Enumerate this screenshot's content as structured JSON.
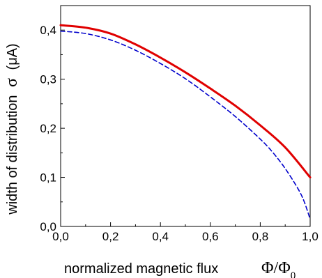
{
  "chart_data": {
    "type": "line",
    "xlabel": "normalized magnetic flux",
    "xlabel_symbol": "Φ/Φ",
    "xlabel_symbol_sub": "0",
    "ylabel": "width of distribution",
    "ylabel_symbol": "σ",
    "ylabel_unit": "(μA)",
    "xlim": [
      0.0,
      1.0
    ],
    "ylim": [
      0.0,
      0.45
    ],
    "xticks": [
      0.0,
      0.2,
      0.4,
      0.6,
      0.8,
      1.0
    ],
    "xtick_labels": [
      "0,0",
      "0,2",
      "0,4",
      "0,6",
      "0,8",
      "1,0"
    ],
    "yticks": [
      0.0,
      0.1,
      0.2,
      0.3,
      0.4
    ],
    "ytick_labels": [
      "0,0",
      "0,1",
      "0,2",
      "0,3",
      "0,4"
    ],
    "grid": false,
    "legend": "none",
    "series": [
      {
        "style": "solid",
        "color": "#e00000",
        "x": [
          0.0,
          0.1,
          0.2,
          0.3,
          0.4,
          0.5,
          0.6,
          0.7,
          0.8,
          0.9,
          1.0
        ],
        "y": [
          0.41,
          0.405,
          0.393,
          0.371,
          0.344,
          0.314,
          0.281,
          0.246,
          0.206,
          0.161,
          0.1
        ]
      },
      {
        "style": "dashed",
        "color": "#0000cc",
        "x": [
          0.0,
          0.1,
          0.2,
          0.3,
          0.4,
          0.5,
          0.6,
          0.7,
          0.8,
          0.85,
          0.9,
          0.95,
          0.975,
          1.0
        ],
        "y": [
          0.398,
          0.393,
          0.38,
          0.359,
          0.332,
          0.301,
          0.264,
          0.224,
          0.178,
          0.151,
          0.118,
          0.078,
          0.052,
          0.015
        ]
      }
    ]
  }
}
